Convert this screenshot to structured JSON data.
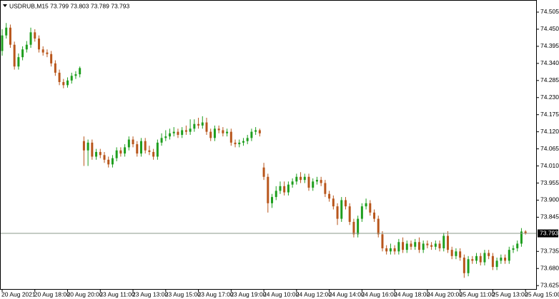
{
  "chart_data": {
    "type": "candlestick",
    "title": "USDRUB,M15  73.799 73.803 73.789 73.793",
    "up_color": "#1e9e1e",
    "down_color": "#b8561c",
    "last_price": 73.793,
    "ylim": [
      73.614,
      74.544
    ],
    "yticks": [
      74.505,
      {
        "value": 74.45,
        "label": "74.450"
      },
      74.395,
      {
        "value": 74.34,
        "label": "74.340"
      },
      74.285,
      {
        "value": 74.23,
        "label": "74.230"
      },
      74.175,
      {
        "value": 74.12,
        "label": "74.120"
      },
      74.065,
      {
        "value": 74.01,
        "label": "74.010"
      },
      73.955,
      {
        "value": 73.9,
        "label": "73.900"
      },
      73.845,
      73.735,
      {
        "value": 73.68,
        "label": "73.680"
      },
      73.625
    ],
    "categories": [
      "20 Aug 2021",
      null,
      null,
      null,
      null,
      null,
      null,
      null,
      "20 Aug 18:00",
      null,
      null,
      null,
      null,
      null,
      null,
      null,
      "20 Aug 20:00",
      null,
      null,
      null,
      null,
      null,
      null,
      null,
      "23 Aug 11:00",
      null,
      null,
      null,
      null,
      null,
      null,
      null,
      "23 Aug 13:00",
      null,
      null,
      null,
      null,
      null,
      null,
      null,
      "23 Aug 15:00",
      null,
      null,
      null,
      null,
      null,
      null,
      null,
      "23 Aug 17:00",
      null,
      null,
      null,
      null,
      null,
      null,
      null,
      "23 Aug 19:00",
      null,
      null,
      null,
      null,
      null,
      null,
      null,
      "24 Aug 10:00",
      null,
      null,
      null,
      null,
      null,
      null,
      null,
      "24 Aug 12:00",
      null,
      null,
      null,
      null,
      null,
      null,
      null,
      "24 Aug 14:00",
      null,
      null,
      null,
      null,
      null,
      null,
      null,
      "24 Aug 16:00",
      null,
      null,
      null,
      null,
      null,
      null,
      null,
      "24 Aug 18:00",
      null,
      null,
      null,
      null,
      null,
      null,
      null,
      "24 Aug 20:00",
      null,
      null,
      null,
      null,
      null,
      null,
      null,
      "25 Aug 11:00",
      null,
      null,
      null,
      null,
      null,
      null,
      null,
      "25 Aug 13:00",
      null,
      null,
      null,
      null,
      null,
      null,
      null,
      "25 Aug 15:00"
    ],
    "open": [
      74.38,
      74.43,
      74.455,
      74.4,
      74.33,
      74.36,
      74.385,
      74.4,
      74.44,
      74.42,
      74.385,
      74.375,
      74.37,
      74.34,
      74.31,
      74.28,
      74.27,
      74.285,
      74.3,
      74.305,
      74.09,
      74.06,
      74.085,
      74.04,
      74.055,
      74.045,
      74.03,
      74.015,
      74.035,
      74.06,
      74.05,
      74.07,
      74.095,
      74.08,
      74.05,
      74.09,
      74.06,
      74.055,
      74.04,
      74.085,
      74.1,
      74.105,
      74.115,
      74.12,
      74.11,
      74.125,
      74.12,
      74.13,
      74.145,
      74.14,
      74.15,
      74.12,
      74.1,
      74.13,
      74.125,
      74.115,
      74.12,
      74.085,
      74.08,
      74.085,
      74.09,
      74.1,
      74.12,
      74.125,
      74.005,
      73.975,
      73.89,
      73.91,
      73.93,
      73.945,
      73.925,
      73.95,
      73.96,
      73.975,
      73.965,
      73.975,
      73.94,
      73.96,
      73.965,
      73.955,
      73.92,
      73.905,
      73.88,
      73.84,
      73.9,
      73.88,
      73.83,
      73.79,
      73.84,
      73.88,
      73.89,
      73.86,
      73.84,
      73.79,
      73.745,
      73.735,
      73.745,
      73.735,
      73.765,
      73.74,
      73.76,
      73.75,
      73.765,
      73.74,
      73.76,
      73.755,
      73.75,
      73.76,
      73.745,
      73.785,
      73.74,
      73.72,
      73.735,
      73.715,
      73.665,
      73.71,
      73.705,
      73.72,
      73.7,
      73.73,
      73.72,
      73.685,
      73.705,
      73.715,
      73.705,
      73.74,
      73.745,
      73.76,
      73.799
    ],
    "high": [
      74.45,
      74.47,
      74.465,
      74.41,
      74.372,
      74.395,
      74.412,
      74.455,
      74.45,
      74.43,
      74.395,
      74.385,
      74.38,
      74.35,
      74.32,
      74.29,
      74.295,
      74.31,
      74.315,
      74.33,
      74.105,
      74.095,
      74.095,
      74.065,
      74.065,
      74.055,
      74.04,
      74.045,
      74.07,
      74.07,
      74.08,
      74.105,
      74.105,
      74.09,
      74.1,
      74.1,
      74.075,
      74.065,
      74.095,
      74.115,
      74.125,
      74.13,
      74.135,
      74.13,
      74.135,
      74.14,
      74.16,
      74.16,
      74.165,
      74.17,
      74.165,
      74.13,
      74.14,
      74.14,
      74.135,
      74.13,
      74.13,
      74.095,
      74.095,
      74.1,
      74.11,
      74.13,
      74.135,
      74.13,
      74.02,
      73.985,
      73.92,
      73.945,
      73.96,
      73.96,
      73.96,
      73.97,
      73.985,
      73.99,
      73.985,
      73.985,
      73.97,
      73.975,
      73.975,
      73.965,
      73.93,
      73.915,
      73.89,
      73.91,
      73.91,
      73.89,
      73.84,
      73.85,
      73.89,
      73.905,
      73.9,
      73.87,
      73.85,
      73.8,
      73.755,
      73.76,
      73.755,
      73.775,
      73.78,
      73.77,
      73.77,
      73.775,
      73.78,
      73.77,
      73.77,
      73.765,
      73.77,
      73.77,
      73.795,
      73.8,
      73.75,
      73.745,
      73.745,
      73.725,
      73.72,
      73.72,
      73.73,
      73.73,
      73.74,
      73.74,
      73.73,
      73.715,
      73.725,
      73.725,
      73.75,
      73.755,
      73.77,
      73.81,
      73.803
    ],
    "low": [
      74.365,
      74.42,
      74.39,
      74.32,
      74.32,
      74.35,
      74.375,
      74.39,
      74.41,
      74.375,
      74.365,
      74.36,
      74.33,
      74.3,
      74.27,
      74.26,
      74.262,
      74.275,
      74.29,
      74.295,
      74.01,
      74.01,
      74.03,
      74.03,
      74.035,
      74.02,
      74.005,
      74.005,
      74.025,
      74.04,
      74.04,
      74.06,
      74.07,
      74.04,
      74.04,
      74.05,
      74.045,
      74.03,
      74.03,
      74.075,
      74.09,
      74.095,
      74.105,
      74.1,
      74.1,
      74.11,
      74.11,
      74.12,
      74.13,
      74.13,
      74.11,
      74.09,
      74.09,
      74.115,
      74.105,
      74.105,
      74.075,
      74.07,
      74.07,
      74.075,
      74.08,
      74.09,
      74.11,
      74.105,
      73.965,
      73.86,
      73.875,
      73.9,
      73.92,
      73.915,
      73.915,
      73.94,
      73.95,
      73.955,
      73.955,
      73.93,
      73.93,
      73.95,
      73.945,
      73.91,
      73.895,
      73.87,
      73.82,
      73.83,
      73.87,
      73.82,
      73.78,
      73.78,
      73.83,
      73.87,
      73.85,
      73.83,
      73.78,
      73.735,
      73.725,
      73.725,
      73.725,
      73.725,
      73.73,
      73.73,
      73.74,
      73.74,
      73.73,
      73.73,
      73.745,
      73.74,
      73.74,
      73.735,
      73.735,
      73.73,
      73.71,
      73.71,
      73.705,
      73.65,
      73.655,
      73.695,
      73.695,
      73.69,
      73.69,
      73.71,
      73.675,
      73.675,
      73.695,
      73.695,
      73.695,
      73.73,
      73.735,
      73.75,
      73.789
    ],
    "close": [
      74.43,
      74.455,
      74.4,
      74.33,
      74.36,
      74.385,
      74.4,
      74.44,
      74.42,
      74.385,
      74.375,
      74.37,
      74.34,
      74.31,
      74.28,
      74.27,
      74.285,
      74.3,
      74.305,
      74.325,
      74.06,
      74.085,
      74.04,
      74.055,
      74.045,
      74.03,
      74.015,
      74.035,
      74.06,
      74.05,
      74.07,
      74.095,
      74.08,
      74.05,
      74.09,
      74.06,
      74.055,
      74.04,
      74.085,
      74.1,
      74.105,
      74.115,
      74.12,
      74.11,
      74.125,
      74.12,
      74.13,
      74.145,
      74.14,
      74.15,
      74.12,
      74.1,
      74.13,
      74.125,
      74.115,
      74.12,
      74.085,
      74.08,
      74.085,
      74.09,
      74.1,
      74.12,
      74.125,
      74.115,
      73.975,
      73.89,
      73.91,
      73.93,
      73.945,
      73.925,
      73.95,
      73.96,
      73.975,
      73.965,
      73.975,
      73.94,
      73.96,
      73.965,
      73.955,
      73.92,
      73.905,
      73.88,
      73.84,
      73.9,
      73.88,
      73.83,
      73.79,
      73.84,
      73.88,
      73.89,
      73.86,
      73.84,
      73.79,
      73.745,
      73.735,
      73.745,
      73.735,
      73.765,
      73.74,
      73.76,
      73.75,
      73.765,
      73.74,
      73.76,
      73.755,
      73.75,
      73.76,
      73.745,
      73.785,
      73.74,
      73.72,
      73.735,
      73.715,
      73.665,
      73.71,
      73.705,
      73.72,
      73.7,
      73.73,
      73.72,
      73.685,
      73.705,
      73.715,
      73.705,
      73.74,
      73.745,
      73.76,
      73.799,
      73.793
    ]
  }
}
